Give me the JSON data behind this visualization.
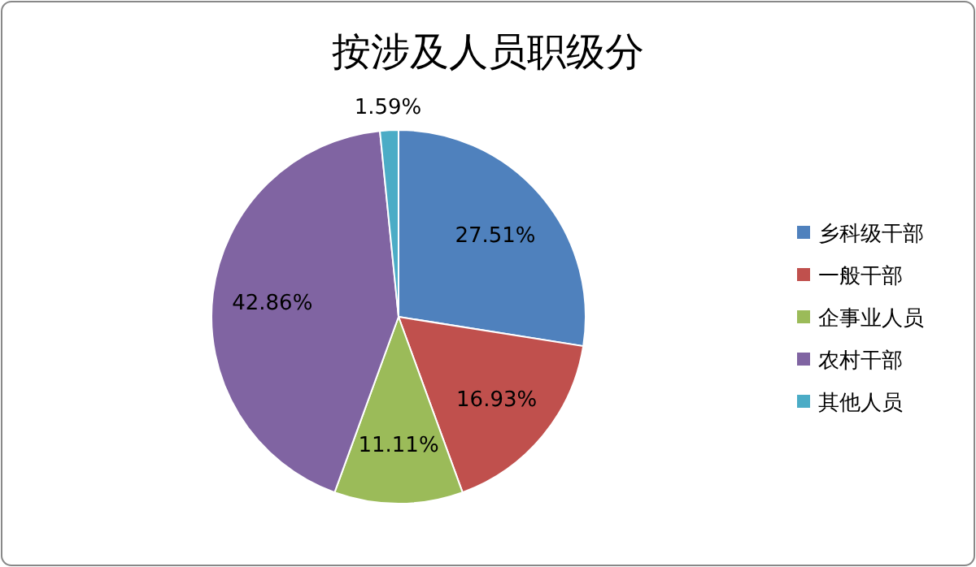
{
  "chart_data": {
    "type": "pie",
    "title": "按涉及人员职级分",
    "categories": [
      "乡科级干部",
      "一般干部",
      "企事业人员",
      "农村干部",
      "其他人员"
    ],
    "values": [
      27.51,
      16.93,
      11.11,
      42.86,
      1.59
    ],
    "colors": [
      "#4f81bd",
      "#c0504d",
      "#9bbb59",
      "#8064a2",
      "#4bacc6"
    ],
    "value_labels": [
      "27.51%",
      "16.93%",
      "11.11%",
      "42.86%",
      "1.59%"
    ],
    "legend": "right"
  }
}
